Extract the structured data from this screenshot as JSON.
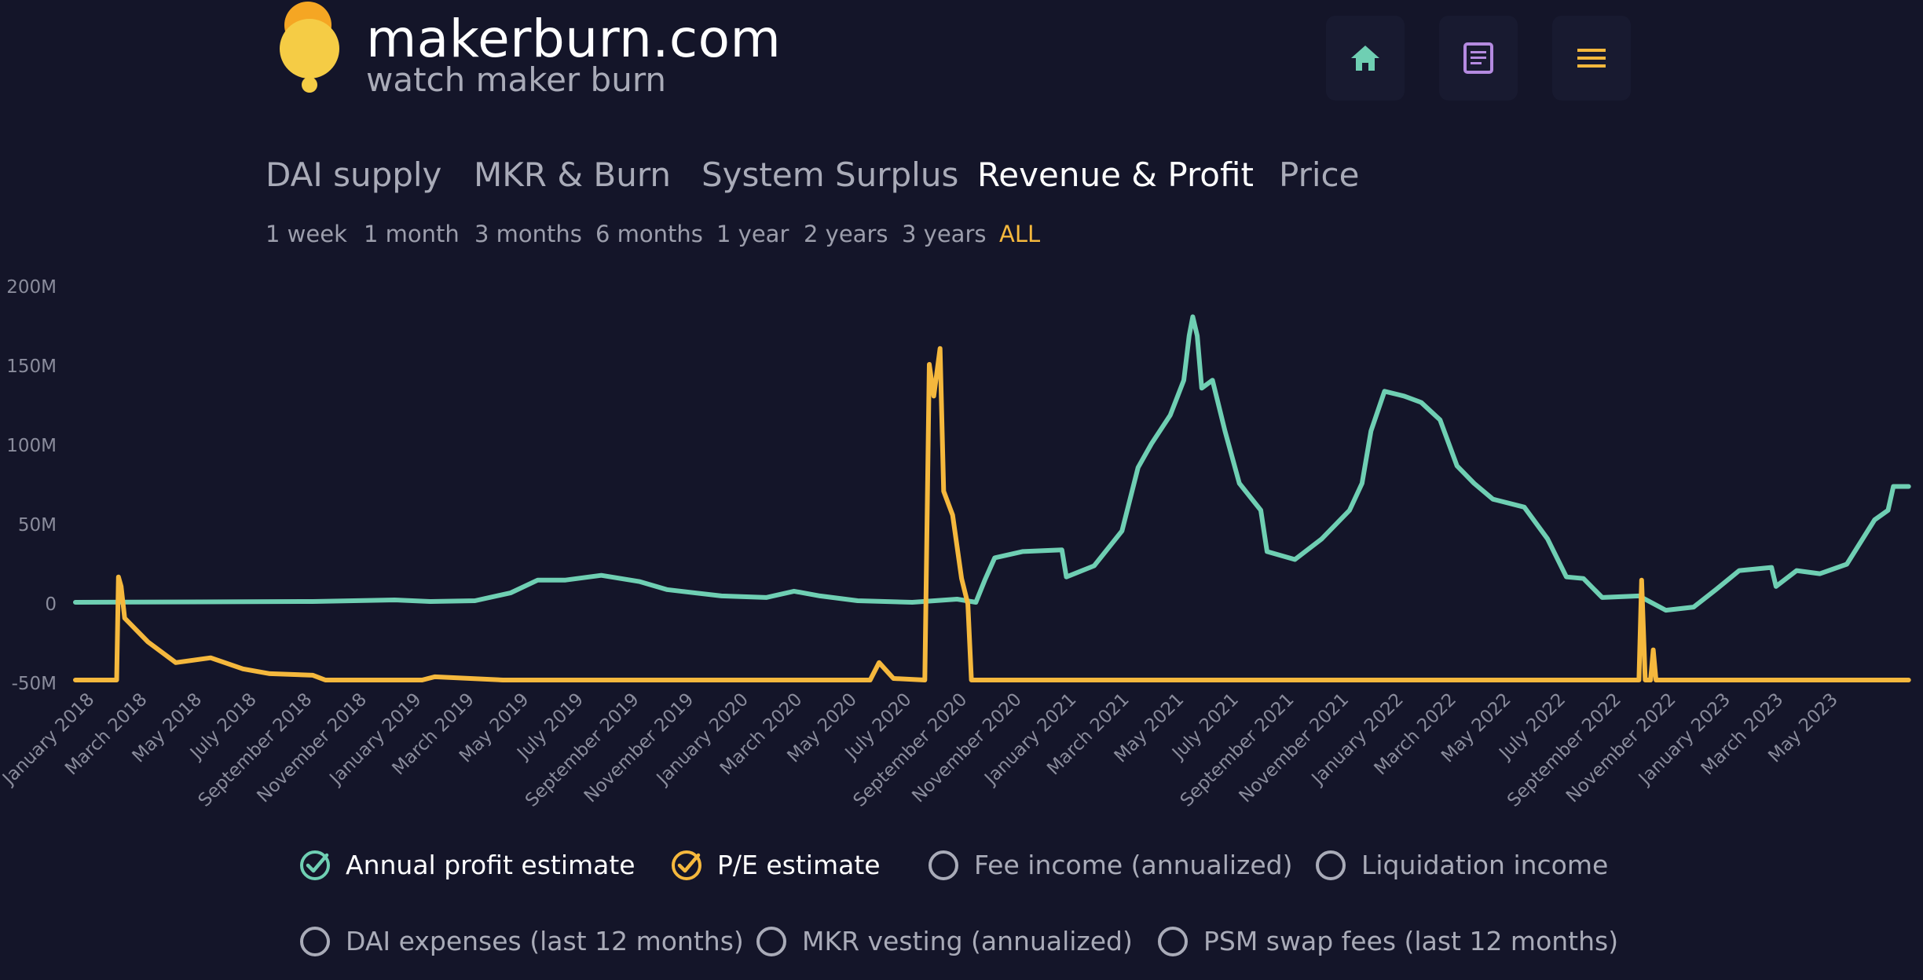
{
  "header": {
    "title": "makerburn.com",
    "subtitle": "watch maker burn",
    "nav": [
      {
        "icon": "home-icon",
        "color": "#6fcfb3"
      },
      {
        "icon": "document-icon",
        "color": "#b48ae0"
      },
      {
        "icon": "menu-icon",
        "color": "#f5b83d"
      }
    ]
  },
  "tabs": [
    {
      "label": "DAI supply",
      "active": false
    },
    {
      "label": "MKR & Burn",
      "active": false
    },
    {
      "label": "System Surplus",
      "active": false
    },
    {
      "label": "Revenue & Profit",
      "active": true
    },
    {
      "label": "Price",
      "active": false
    }
  ],
  "periods": [
    {
      "label": "1 week",
      "active": false
    },
    {
      "label": "1 month",
      "active": false
    },
    {
      "label": "3 months",
      "active": false
    },
    {
      "label": "6 months",
      "active": false
    },
    {
      "label": "1 year",
      "active": false
    },
    {
      "label": "2 years",
      "active": false
    },
    {
      "label": "3 years",
      "active": false
    },
    {
      "label": "ALL",
      "active": true
    }
  ],
  "legend": [
    {
      "label": "Annual profit estimate",
      "checked": true,
      "color": "#6fcfb3"
    },
    {
      "label": "P/E estimate",
      "checked": true,
      "color": "#f5b83d"
    },
    {
      "label": "Fee income (annualized)",
      "checked": false,
      "color": "#a9abb8"
    },
    {
      "label": "Liquidation income",
      "checked": false,
      "color": "#a9abb8"
    },
    {
      "label": "DAI expenses (last 12 months)",
      "checked": false,
      "color": "#a9abb8"
    },
    {
      "label": "MKR vesting (annualized)",
      "checked": false,
      "color": "#a9abb8"
    },
    {
      "label": "PSM swap fees (last 12 months)",
      "checked": false,
      "color": "#a9abb8"
    }
  ],
  "colors": {
    "background": "#141529",
    "profit": "#6fcfb3",
    "pe": "#f5b83d",
    "axis_text": "#8a8c9c"
  },
  "chart_data": {
    "type": "line",
    "ylim": [
      -50,
      200
    ],
    "y_ticks": [
      {
        "value": 200,
        "label": "200M"
      },
      {
        "value": 150,
        "label": "150M"
      },
      {
        "value": 100,
        "label": "100M"
      },
      {
        "value": 50,
        "label": "50M"
      },
      {
        "value": 0,
        "label": "0"
      },
      {
        "value": -50,
        "label": "-50M"
      }
    ],
    "x_range": [
      "2017-12-10",
      "2023-07-20"
    ],
    "x_ticks": [
      "January 2018",
      "March 2018",
      "May 2018",
      "July 2018",
      "September 2018",
      "November 2018",
      "January 2019",
      "March 2019",
      "May 2019",
      "July 2019",
      "September 2019",
      "November 2019",
      "January 2020",
      "March 2020",
      "May 2020",
      "July 2020",
      "September 2020",
      "November 2020",
      "January 2021",
      "March 2021",
      "May 2021",
      "July 2021",
      "September 2021",
      "November 2021",
      "January 2022",
      "March 2022",
      "May 2022",
      "July 2022",
      "September 2022",
      "November 2022",
      "January 2023",
      "March 2023",
      "May 2023"
    ],
    "grid": false,
    "series": [
      {
        "name": "Annual profit estimate",
        "color": "#6fcfb3",
        "points": [
          [
            "2017-12-10",
            0
          ],
          [
            "2018-09-01",
            0.5
          ],
          [
            "2018-12-01",
            1.5
          ],
          [
            "2019-01-10",
            0.5
          ],
          [
            "2019-03-01",
            1
          ],
          [
            "2019-04-10",
            6
          ],
          [
            "2019-05-10",
            14
          ],
          [
            "2019-06-10",
            14
          ],
          [
            "2019-07-20",
            17
          ],
          [
            "2019-09-01",
            13
          ],
          [
            "2019-10-01",
            8
          ],
          [
            "2019-12-01",
            4
          ],
          [
            "2020-01-20",
            3
          ],
          [
            "2020-02-20",
            7
          ],
          [
            "2020-03-20",
            4
          ],
          [
            "2020-05-01",
            1
          ],
          [
            "2020-07-01",
            0
          ],
          [
            "2020-08-20",
            2
          ],
          [
            "2020-09-10",
            0
          ],
          [
            "2020-09-20",
            14
          ],
          [
            "2020-10-01",
            28
          ],
          [
            "2020-11-01",
            32
          ],
          [
            "2020-12-15",
            33
          ],
          [
            "2020-12-20",
            16
          ],
          [
            "2021-01-20",
            23
          ],
          [
            "2021-02-20",
            45
          ],
          [
            "2021-03-10",
            85
          ],
          [
            "2021-03-25",
            100
          ],
          [
            "2021-04-15",
            118
          ],
          [
            "2021-04-30",
            140
          ],
          [
            "2021-05-06",
            168
          ],
          [
            "2021-05-10",
            180
          ],
          [
            "2021-05-15",
            168
          ],
          [
            "2021-05-20",
            135
          ],
          [
            "2021-06-01",
            140
          ],
          [
            "2021-06-15",
            108
          ],
          [
            "2021-07-01",
            75
          ],
          [
            "2021-07-25",
            58
          ],
          [
            "2021-08-01",
            32
          ],
          [
            "2021-09-01",
            27
          ],
          [
            "2021-10-01",
            40
          ],
          [
            "2021-11-01",
            58
          ],
          [
            "2021-11-15",
            75
          ],
          [
            "2021-11-25",
            108
          ],
          [
            "2021-12-10",
            133
          ],
          [
            "2022-01-01",
            130
          ],
          [
            "2022-01-20",
            126
          ],
          [
            "2022-02-10",
            115
          ],
          [
            "2022-03-01",
            86
          ],
          [
            "2022-03-20",
            75
          ],
          [
            "2022-04-10",
            65
          ],
          [
            "2022-05-15",
            60
          ],
          [
            "2022-06-10",
            40
          ],
          [
            "2022-07-01",
            16
          ],
          [
            "2022-07-20",
            15
          ],
          [
            "2022-08-10",
            3
          ],
          [
            "2022-09-20",
            4
          ],
          [
            "2022-10-20",
            -5
          ],
          [
            "2022-11-20",
            -3
          ],
          [
            "2022-12-15",
            8
          ],
          [
            "2023-01-10",
            20
          ],
          [
            "2023-02-15",
            22
          ],
          [
            "2023-02-20",
            10
          ],
          [
            "2023-03-15",
            20
          ],
          [
            "2023-04-10",
            18
          ],
          [
            "2023-05-10",
            24
          ],
          [
            "2023-06-10",
            52
          ],
          [
            "2023-06-25",
            58
          ],
          [
            "2023-07-01",
            73
          ],
          [
            "2023-07-18",
            73
          ]
        ]
      },
      {
        "name": "P/E estimate",
        "color": "#f5b83d",
        "points": [
          [
            "2017-12-10",
            -49
          ],
          [
            "2018-01-25",
            -49
          ],
          [
            "2018-01-27",
            16
          ],
          [
            "2018-01-30",
            10
          ],
          [
            "2018-02-03",
            -10
          ],
          [
            "2018-03-01",
            -25
          ],
          [
            "2018-04-01",
            -38
          ],
          [
            "2018-05-10",
            -35
          ],
          [
            "2018-06-15",
            -42
          ],
          [
            "2018-07-15",
            -45
          ],
          [
            "2018-09-01",
            -46
          ],
          [
            "2018-09-15",
            -49
          ],
          [
            "2019-01-01",
            -49
          ],
          [
            "2019-01-15",
            -47
          ],
          [
            "2019-04-01",
            -49
          ],
          [
            "2020-05-15",
            -49
          ],
          [
            "2020-05-25",
            -38
          ],
          [
            "2020-06-10",
            -48
          ],
          [
            "2020-07-15",
            -49
          ],
          [
            "2020-07-20",
            150
          ],
          [
            "2020-07-25",
            130
          ],
          [
            "2020-08-01",
            160
          ],
          [
            "2020-08-05",
            70
          ],
          [
            "2020-08-15",
            55
          ],
          [
            "2020-08-25",
            15
          ],
          [
            "2020-09-01",
            -1
          ],
          [
            "2020-09-05",
            -49
          ],
          [
            "2022-09-20",
            -49
          ],
          [
            "2022-09-23",
            14
          ],
          [
            "2022-09-27",
            -49
          ],
          [
            "2022-10-03",
            -49
          ],
          [
            "2022-10-06",
            -30
          ],
          [
            "2022-10-09",
            -49
          ],
          [
            "2023-07-18",
            -49
          ]
        ]
      }
    ]
  }
}
